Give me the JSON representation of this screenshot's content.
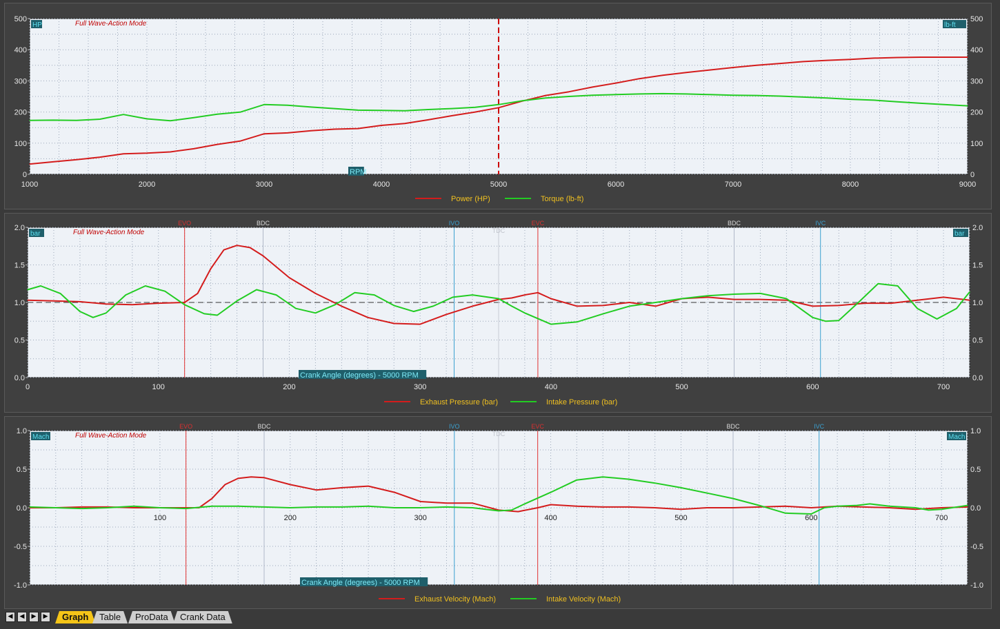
{
  "mode_label": "Full Wave-Action Mode",
  "colors": {
    "red": "#d41c1c",
    "green": "#22cc22",
    "plot_bg": "#eef2f7",
    "panel_bg": "#404040",
    "tab_active": "#f5c518",
    "event_ivo": "#3aa0d0",
    "event_evo": "#e03030",
    "event_bdc": "#b0b8c8"
  },
  "tabs": [
    {
      "label": "Graph",
      "active": true
    },
    {
      "label": "Table",
      "active": false
    },
    {
      "label": "ProData",
      "active": false
    },
    {
      "label": "Crank Data",
      "active": false
    }
  ],
  "nav_icons": [
    "first-icon",
    "prev-icon",
    "next-icon",
    "last-icon"
  ],
  "chart_data": [
    {
      "type": "line",
      "x_label": "RPM",
      "y_left_unit": "HP",
      "y_right_unit": "lb-ft",
      "xlim": [
        1000,
        9000
      ],
      "ylim": [
        0,
        500
      ],
      "x_ticks": [
        "1000",
        "2000",
        "3000",
        "4000",
        "5000",
        "6000",
        "7000",
        "8000",
        "9000"
      ],
      "y_ticks": [
        "0",
        "100",
        "200",
        "300",
        "400",
        "500"
      ],
      "marker_rpm": 5000,
      "series": [
        {
          "name": "Power (HP)",
          "color": "#d41c1c",
          "x": [
            1000,
            1200,
            1400,
            1600,
            1800,
            2000,
            2200,
            2400,
            2600,
            2800,
            3000,
            3200,
            3400,
            3600,
            3800,
            4000,
            4200,
            4400,
            4600,
            4800,
            5000,
            5200,
            5400,
            5600,
            5800,
            6000,
            6200,
            6400,
            6600,
            6800,
            7000,
            7200,
            7400,
            7600,
            7800,
            8000,
            8200,
            8400,
            8600,
            8800,
            9000
          ],
          "y": [
            33,
            40,
            47,
            55,
            66,
            68,
            72,
            82,
            96,
            107,
            130,
            133,
            140,
            145,
            147,
            157,
            163,
            175,
            188,
            200,
            214,
            235,
            253,
            265,
            280,
            293,
            307,
            318,
            327,
            335,
            343,
            350,
            356,
            362,
            366,
            369,
            373,
            375,
            376,
            376,
            376
          ]
        },
        {
          "name": "Torque (lb-ft)",
          "color": "#22cc22",
          "x": [
            1000,
            1200,
            1400,
            1600,
            1800,
            2000,
            2200,
            2400,
            2600,
            2800,
            3000,
            3200,
            3400,
            3600,
            3800,
            4000,
            4200,
            4400,
            4600,
            4800,
            5000,
            5200,
            5400,
            5600,
            5800,
            6000,
            6200,
            6400,
            6600,
            6800,
            7000,
            7200,
            7400,
            7600,
            7800,
            8000,
            8200,
            8400,
            8600,
            8800,
            9000
          ],
          "y": [
            173,
            174,
            173,
            177,
            192,
            178,
            172,
            182,
            193,
            200,
            224,
            222,
            216,
            211,
            206,
            205,
            204,
            208,
            211,
            215,
            224,
            236,
            245,
            250,
            254,
            256,
            258,
            259,
            258,
            256,
            254,
            253,
            251,
            248,
            245,
            241,
            238,
            233,
            228,
            224,
            220
          ]
        }
      ]
    },
    {
      "type": "line",
      "x_label": "Crank Angle (degrees) - 5000 RPM",
      "y_left_unit": "bar",
      "y_right_unit": "bar",
      "xlim": [
        0,
        720
      ],
      "ylim": [
        0,
        2
      ],
      "x_ticks": [
        "0",
        "100",
        "200",
        "300",
        "400",
        "500",
        "600",
        "700"
      ],
      "y_ticks": [
        "0.0",
        "0.5",
        "1.0",
        "1.5",
        "2.0"
      ],
      "reference_y": 1.0,
      "events": [
        {
          "label": "EVO",
          "x": 120,
          "kind": "evo"
        },
        {
          "label": "BDC",
          "x": 180,
          "kind": "bdc"
        },
        {
          "label": "IVO",
          "x": 326,
          "kind": "ivo"
        },
        {
          "label": "TDC",
          "x": 360,
          "kind": "tdc"
        },
        {
          "label": "EVC",
          "x": 390,
          "kind": "evo"
        },
        {
          "label": "BDC",
          "x": 540,
          "kind": "bdc"
        },
        {
          "label": "IVC",
          "x": 606,
          "kind": "ivo"
        }
      ],
      "series": [
        {
          "name": "Exhaust Pressure (bar)",
          "color": "#d41c1c",
          "x": [
            0,
            20,
            40,
            60,
            80,
            100,
            120,
            130,
            140,
            150,
            160,
            170,
            180,
            200,
            220,
            240,
            260,
            280,
            300,
            320,
            340,
            360,
            370,
            380,
            390,
            400,
            420,
            440,
            460,
            480,
            500,
            520,
            540,
            560,
            580,
            600,
            620,
            640,
            660,
            680,
            700,
            720
          ],
          "y": [
            1.03,
            1.02,
            1.01,
            0.98,
            0.97,
            0.99,
            1.0,
            1.12,
            1.45,
            1.7,
            1.76,
            1.73,
            1.62,
            1.33,
            1.12,
            0.95,
            0.8,
            0.72,
            0.71,
            0.84,
            0.95,
            1.04,
            1.06,
            1.1,
            1.13,
            1.05,
            0.95,
            0.96,
            1.0,
            0.95,
            1.05,
            1.07,
            1.04,
            1.04,
            1.03,
            0.95,
            0.96,
            0.99,
            0.99,
            1.03,
            1.07,
            1.03
          ]
        },
        {
          "name": "Intake Pressure (bar)",
          "color": "#22cc22",
          "x": [
            0,
            10,
            25,
            40,
            50,
            60,
            75,
            90,
            105,
            120,
            135,
            145,
            160,
            175,
            190,
            205,
            220,
            235,
            250,
            265,
            280,
            295,
            310,
            325,
            340,
            360,
            370,
            380,
            400,
            420,
            440,
            460,
            480,
            500,
            520,
            540,
            560,
            580,
            600,
            610,
            620,
            635,
            650,
            665,
            680,
            695,
            710,
            720
          ],
          "y": [
            1.17,
            1.22,
            1.12,
            0.88,
            0.8,
            0.86,
            1.1,
            1.22,
            1.15,
            0.97,
            0.85,
            0.83,
            1.02,
            1.17,
            1.1,
            0.92,
            0.86,
            0.97,
            1.13,
            1.1,
            0.96,
            0.88,
            0.95,
            1.07,
            1.1,
            1.05,
            0.95,
            0.86,
            0.71,
            0.74,
            0.85,
            0.95,
            1.0,
            1.05,
            1.09,
            1.11,
            1.12,
            1.05,
            0.8,
            0.75,
            0.76,
            1.0,
            1.25,
            1.22,
            0.92,
            0.78,
            0.92,
            1.14
          ]
        }
      ]
    },
    {
      "type": "line",
      "x_label": "Crank Angle (degrees) - 5000 RPM",
      "y_left_unit": "Mach",
      "y_right_unit": "Mach",
      "xlim": [
        0,
        720
      ],
      "ylim": [
        -1,
        1
      ],
      "x_ticks": [
        "100",
        "200",
        "300",
        "400",
        "500",
        "600",
        "700"
      ],
      "y_ticks": [
        "-1.0",
        "-0.5",
        "0.0",
        "0.5",
        "1.0"
      ],
      "events": [
        {
          "label": "EVO",
          "x": 120,
          "kind": "evo"
        },
        {
          "label": "BDC",
          "x": 180,
          "kind": "bdc"
        },
        {
          "label": "IVO",
          "x": 326,
          "kind": "ivo"
        },
        {
          "label": "TDC",
          "x": 360,
          "kind": "tdc"
        },
        {
          "label": "EVC",
          "x": 390,
          "kind": "evo"
        },
        {
          "label": "BDC",
          "x": 540,
          "kind": "bdc"
        },
        {
          "label": "IVC",
          "x": 606,
          "kind": "ivo"
        }
      ],
      "series": [
        {
          "name": "Exhaust Velocity (Mach)",
          "color": "#d41c1c",
          "x": [
            0,
            20,
            40,
            60,
            80,
            100,
            120,
            130,
            140,
            150,
            160,
            170,
            180,
            200,
            220,
            240,
            260,
            280,
            300,
            320,
            340,
            360,
            375,
            390,
            400,
            420,
            440,
            460,
            480,
            500,
            520,
            540,
            560,
            580,
            600,
            620,
            640,
            660,
            680,
            700,
            720
          ],
          "y": [
            0.0,
            0.0,
            0.01,
            0.01,
            0.0,
            0.0,
            0.0,
            0.0,
            0.12,
            0.3,
            0.38,
            0.4,
            0.39,
            0.3,
            0.23,
            0.26,
            0.28,
            0.2,
            0.08,
            0.06,
            0.06,
            -0.03,
            -0.05,
            0.0,
            0.04,
            0.02,
            0.01,
            0.01,
            0.0,
            -0.02,
            0.0,
            0.0,
            0.01,
            0.02,
            0.0,
            0.02,
            0.01,
            0.0,
            -0.02,
            0.0,
            0.01
          ]
        },
        {
          "name": "Intake Velocity (Mach)",
          "color": "#22cc22",
          "x": [
            0,
            20,
            40,
            60,
            80,
            100,
            120,
            140,
            160,
            180,
            200,
            220,
            240,
            260,
            280,
            300,
            320,
            340,
            360,
            370,
            380,
            400,
            420,
            440,
            460,
            480,
            500,
            520,
            540,
            560,
            580,
            600,
            610,
            620,
            635,
            645,
            660,
            680,
            690,
            700,
            720
          ],
          "y": [
            0.01,
            0.0,
            -0.01,
            0.0,
            0.02,
            0.0,
            -0.01,
            0.02,
            0.02,
            0.01,
            0.0,
            0.01,
            0.01,
            0.02,
            0.0,
            0.0,
            0.01,
            0.0,
            -0.04,
            -0.03,
            0.05,
            0.2,
            0.36,
            0.4,
            0.37,
            0.32,
            0.26,
            0.19,
            0.12,
            0.03,
            -0.07,
            -0.08,
            0.0,
            0.02,
            0.03,
            0.05,
            0.02,
            0.0,
            -0.03,
            -0.02,
            0.03
          ]
        }
      ]
    }
  ]
}
